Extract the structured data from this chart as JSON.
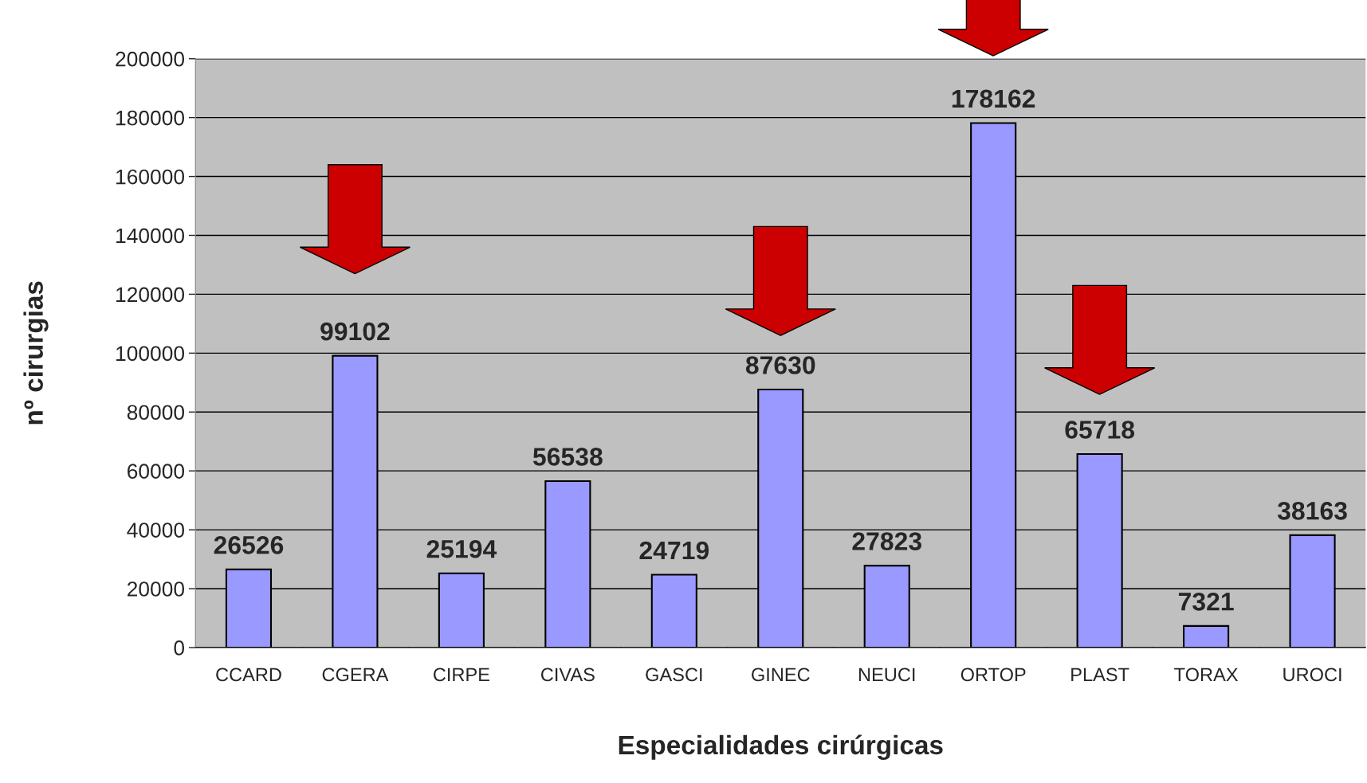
{
  "chart_data": {
    "type": "bar",
    "xlabel": "Especialidades cirúrgicas",
    "ylabel": "nº cirurgias",
    "categories": [
      "CCARD",
      "CGERA",
      "CIRPE",
      "CIVAS",
      "GASCI",
      "GINEC",
      "NEUCI",
      "ORTOP",
      "PLAST",
      "TORAX",
      "UROCI"
    ],
    "values": [
      26526,
      99102,
      25194,
      56538,
      24719,
      87630,
      27823,
      178162,
      65718,
      7321,
      38163
    ],
    "color": "#9999ff",
    "data_labels": true,
    "grid": "y",
    "legend": false,
    "ylim": [
      0,
      200000
    ],
    "yticks": [
      0,
      20000,
      40000,
      60000,
      80000,
      100000,
      120000,
      140000,
      160000,
      180000,
      200000
    ]
  }
}
